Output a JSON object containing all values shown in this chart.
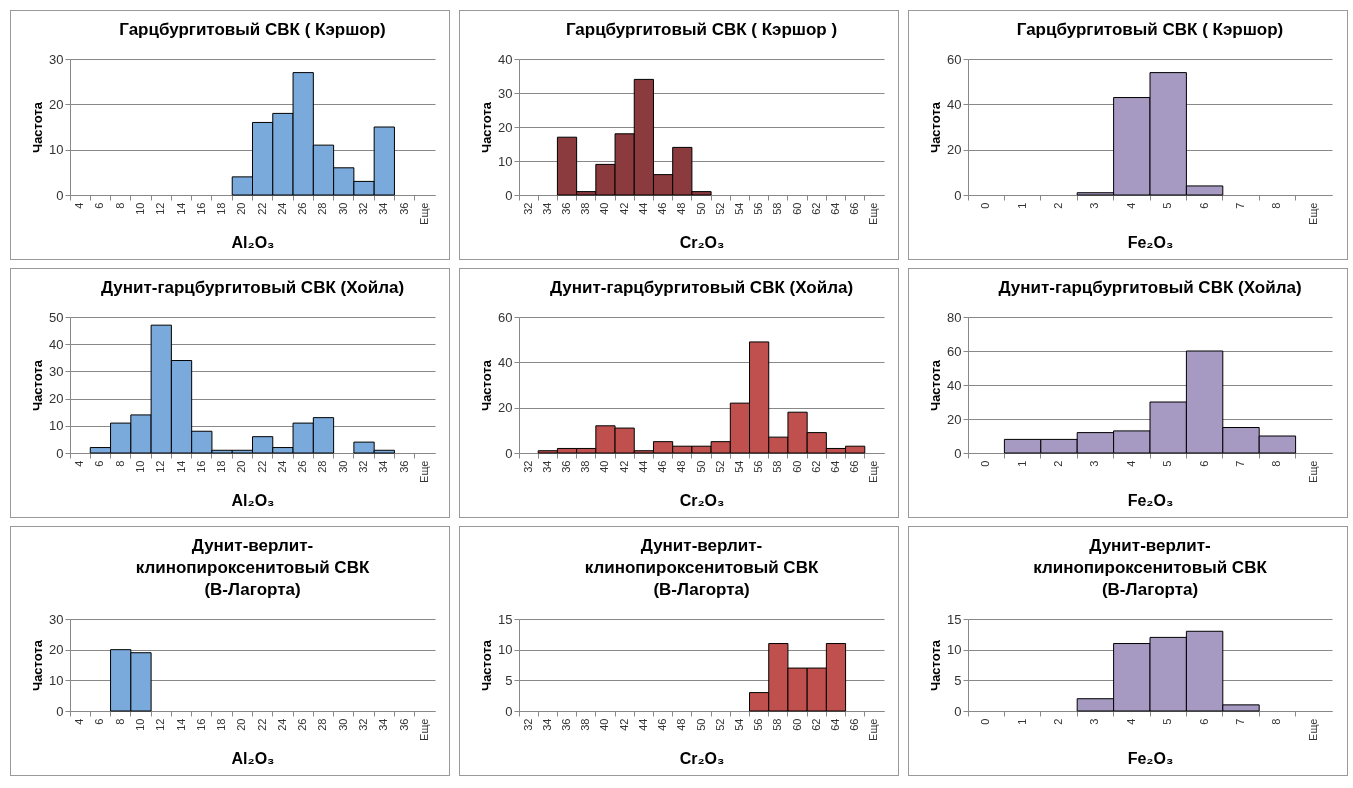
{
  "chart_data": [
    {
      "type": "bar",
      "title": "Гарцбургитовый СВК ( Кэршор)",
      "xlabel": "Al₂O₃",
      "ylabel": "Частота",
      "color": "#7aaadc",
      "grid": "y",
      "ylim": [
        0,
        30
      ],
      "yticks": [
        0,
        10,
        20,
        30
      ],
      "categories": [
        "4",
        "6",
        "8",
        "10",
        "12",
        "14",
        "16",
        "18",
        "20",
        "22",
        "24",
        "26",
        "28",
        "30",
        "32",
        "34",
        "36",
        "Еще"
      ],
      "values": [
        0,
        0,
        0,
        0,
        0,
        0,
        0,
        0,
        4,
        16,
        18,
        27,
        11,
        6,
        3,
        15,
        0,
        0
      ]
    },
    {
      "type": "bar",
      "title": "Гарцбургитовый СВК ( Кэршор )",
      "xlabel": "Cr₂O₃",
      "ylabel": "Частота",
      "color": "#8b3a3e",
      "grid": "y",
      "ylim": [
        0,
        40
      ],
      "yticks": [
        0,
        10,
        20,
        30,
        40
      ],
      "categories": [
        "32",
        "34",
        "36",
        "38",
        "40",
        "42",
        "44",
        "46",
        "48",
        "50",
        "52",
        "54",
        "56",
        "58",
        "60",
        "62",
        "64",
        "66",
        "Еще"
      ],
      "values": [
        0,
        0,
        17,
        1,
        9,
        18,
        34,
        6,
        14,
        1,
        0,
        0,
        0,
        0,
        0,
        0,
        0,
        0,
        0
      ]
    },
    {
      "type": "bar",
      "title": "Гарцбургитовый СВК ( Кэршор)",
      "xlabel": "Fe₂O₃",
      "ylabel": "Частота",
      "color": "#a699c2",
      "grid": "y",
      "ylim": [
        0,
        60
      ],
      "yticks": [
        0,
        20,
        40,
        60
      ],
      "categories": [
        "0",
        "1",
        "2",
        "3",
        "4",
        "5",
        "6",
        "7",
        "8",
        "Еще"
      ],
      "values": [
        0,
        0,
        0,
        1,
        43,
        54,
        4,
        0,
        0,
        0
      ]
    },
    {
      "type": "bar",
      "title": "Дунит-гарцбургитовый СВК (Хойла)",
      "xlabel": "Al₂O₃",
      "ylabel": "Частота",
      "color": "#7aaadc",
      "grid": "y",
      "ylim": [
        0,
        50
      ],
      "yticks": [
        0,
        10,
        20,
        30,
        40,
        50
      ],
      "categories": [
        "4",
        "6",
        "8",
        "10",
        "12",
        "14",
        "16",
        "18",
        "20",
        "22",
        "24",
        "26",
        "28",
        "30",
        "32",
        "34",
        "36",
        "Еще"
      ],
      "values": [
        0,
        2,
        11,
        14,
        47,
        34,
        8,
        1,
        1,
        6,
        2,
        11,
        13,
        0,
        4,
        1,
        0,
        0
      ]
    },
    {
      "type": "bar",
      "title": "Дунит-гарцбургитовый СВК (Хойла)",
      "xlabel": "Cr₂O₃",
      "ylabel": "Частота",
      "color": "#c0504d",
      "grid": "y",
      "ylim": [
        0,
        60
      ],
      "yticks": [
        0,
        20,
        40,
        60
      ],
      "categories": [
        "32",
        "34",
        "36",
        "38",
        "40",
        "42",
        "44",
        "46",
        "48",
        "50",
        "52",
        "54",
        "56",
        "58",
        "60",
        "62",
        "64",
        "66",
        "Еще"
      ],
      "values": [
        0,
        1,
        2,
        2,
        12,
        11,
        1,
        5,
        3,
        3,
        5,
        22,
        49,
        7,
        18,
        9,
        2,
        3,
        0
      ]
    },
    {
      "type": "bar",
      "title": "Дунит-гарцбургитовый СВК (Хойла)",
      "xlabel": "Fe₂O₃",
      "ylabel": "Частота",
      "color": "#a699c2",
      "grid": "y",
      "ylim": [
        0,
        80
      ],
      "yticks": [
        0,
        20,
        40,
        60,
        80
      ],
      "categories": [
        "0",
        "1",
        "2",
        "3",
        "4",
        "5",
        "6",
        "7",
        "8",
        "Еще"
      ],
      "values": [
        0,
        8,
        8,
        12,
        13,
        30,
        60,
        15,
        10,
        0
      ]
    },
    {
      "type": "bar",
      "title": "Дунит-верлит-\nклинопироксенитовый СВК\n(В-Лагорта)",
      "xlabel": "Al₂O₃",
      "ylabel": "Частота",
      "color": "#7aaadc",
      "grid": "y",
      "ylim": [
        0,
        30
      ],
      "yticks": [
        0,
        10,
        20,
        30
      ],
      "categories": [
        "4",
        "6",
        "8",
        "10",
        "12",
        "14",
        "16",
        "18",
        "20",
        "22",
        "24",
        "26",
        "28",
        "30",
        "32",
        "34",
        "36",
        "Еще"
      ],
      "values": [
        0,
        0,
        20,
        19,
        0,
        0,
        0,
        0,
        0,
        0,
        0,
        0,
        0,
        0,
        0,
        0,
        0,
        0
      ]
    },
    {
      "type": "bar",
      "title": "Дунит-верлит-\nклинопироксенитовый СВК\n(В-Лагорта)",
      "xlabel": "Cr₂O₃",
      "ylabel": "Частота",
      "color": "#c0504d",
      "grid": "y",
      "ylim": [
        0,
        15
      ],
      "yticks": [
        0,
        5,
        10,
        15
      ],
      "categories": [
        "32",
        "34",
        "36",
        "38",
        "40",
        "42",
        "44",
        "46",
        "48",
        "50",
        "52",
        "54",
        "56",
        "58",
        "60",
        "62",
        "64",
        "66",
        "Еще"
      ],
      "values": [
        0,
        0,
        0,
        0,
        0,
        0,
        0,
        0,
        0,
        0,
        0,
        0,
        3,
        11,
        7,
        7,
        11,
        0,
        0
      ]
    },
    {
      "type": "bar",
      "title": "Дунит-верлит-\nклинопироксенитовый СВК\n(В-Лагорта)",
      "xlabel": "Fe₂O₃",
      "ylabel": "Частота",
      "color": "#a699c2",
      "grid": "y",
      "ylim": [
        0,
        15
      ],
      "yticks": [
        0,
        5,
        10,
        15
      ],
      "categories": [
        "0",
        "1",
        "2",
        "3",
        "4",
        "5",
        "6",
        "7",
        "8",
        "Еще"
      ],
      "values": [
        0,
        0,
        0,
        2,
        11,
        12,
        13,
        1,
        0,
        0
      ]
    }
  ]
}
